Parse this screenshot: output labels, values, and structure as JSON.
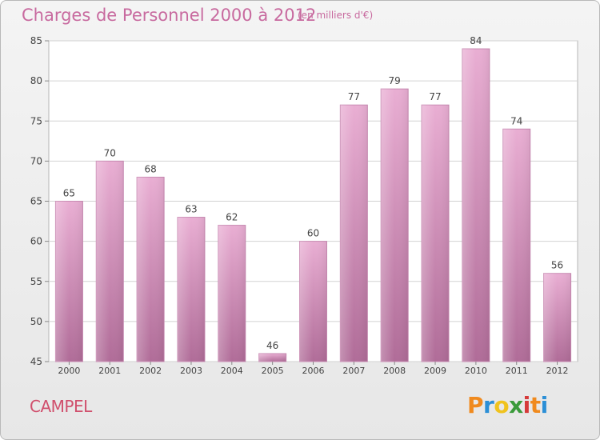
{
  "chart_data": {
    "type": "bar",
    "title": "Charges de Personnel 2000 à 2012",
    "subtitle": "(en milliers d'€)",
    "categories": [
      "2000",
      "2001",
      "2002",
      "2003",
      "2004",
      "2005",
      "2006",
      "2007",
      "2008",
      "2009",
      "2010",
      "2011",
      "2012"
    ],
    "values": [
      65,
      70,
      68,
      63,
      62,
      46,
      60,
      77,
      79,
      77,
      84,
      74,
      56
    ],
    "ylim": [
      45,
      85
    ],
    "yticks": [
      45,
      50,
      55,
      60,
      65,
      70,
      75,
      80,
      85
    ],
    "grid": true,
    "bar_color": "#d68fba"
  },
  "place_name": "CAMPEL",
  "brand": {
    "letters": [
      "P",
      "r",
      "o",
      "x",
      "i",
      "t",
      "i"
    ],
    "colors": [
      "#f08a1e",
      "#2c8fd6",
      "#f0c31e",
      "#3a9a3a",
      "#d63a3a",
      "#f08a1e",
      "#2c8fd6"
    ]
  }
}
